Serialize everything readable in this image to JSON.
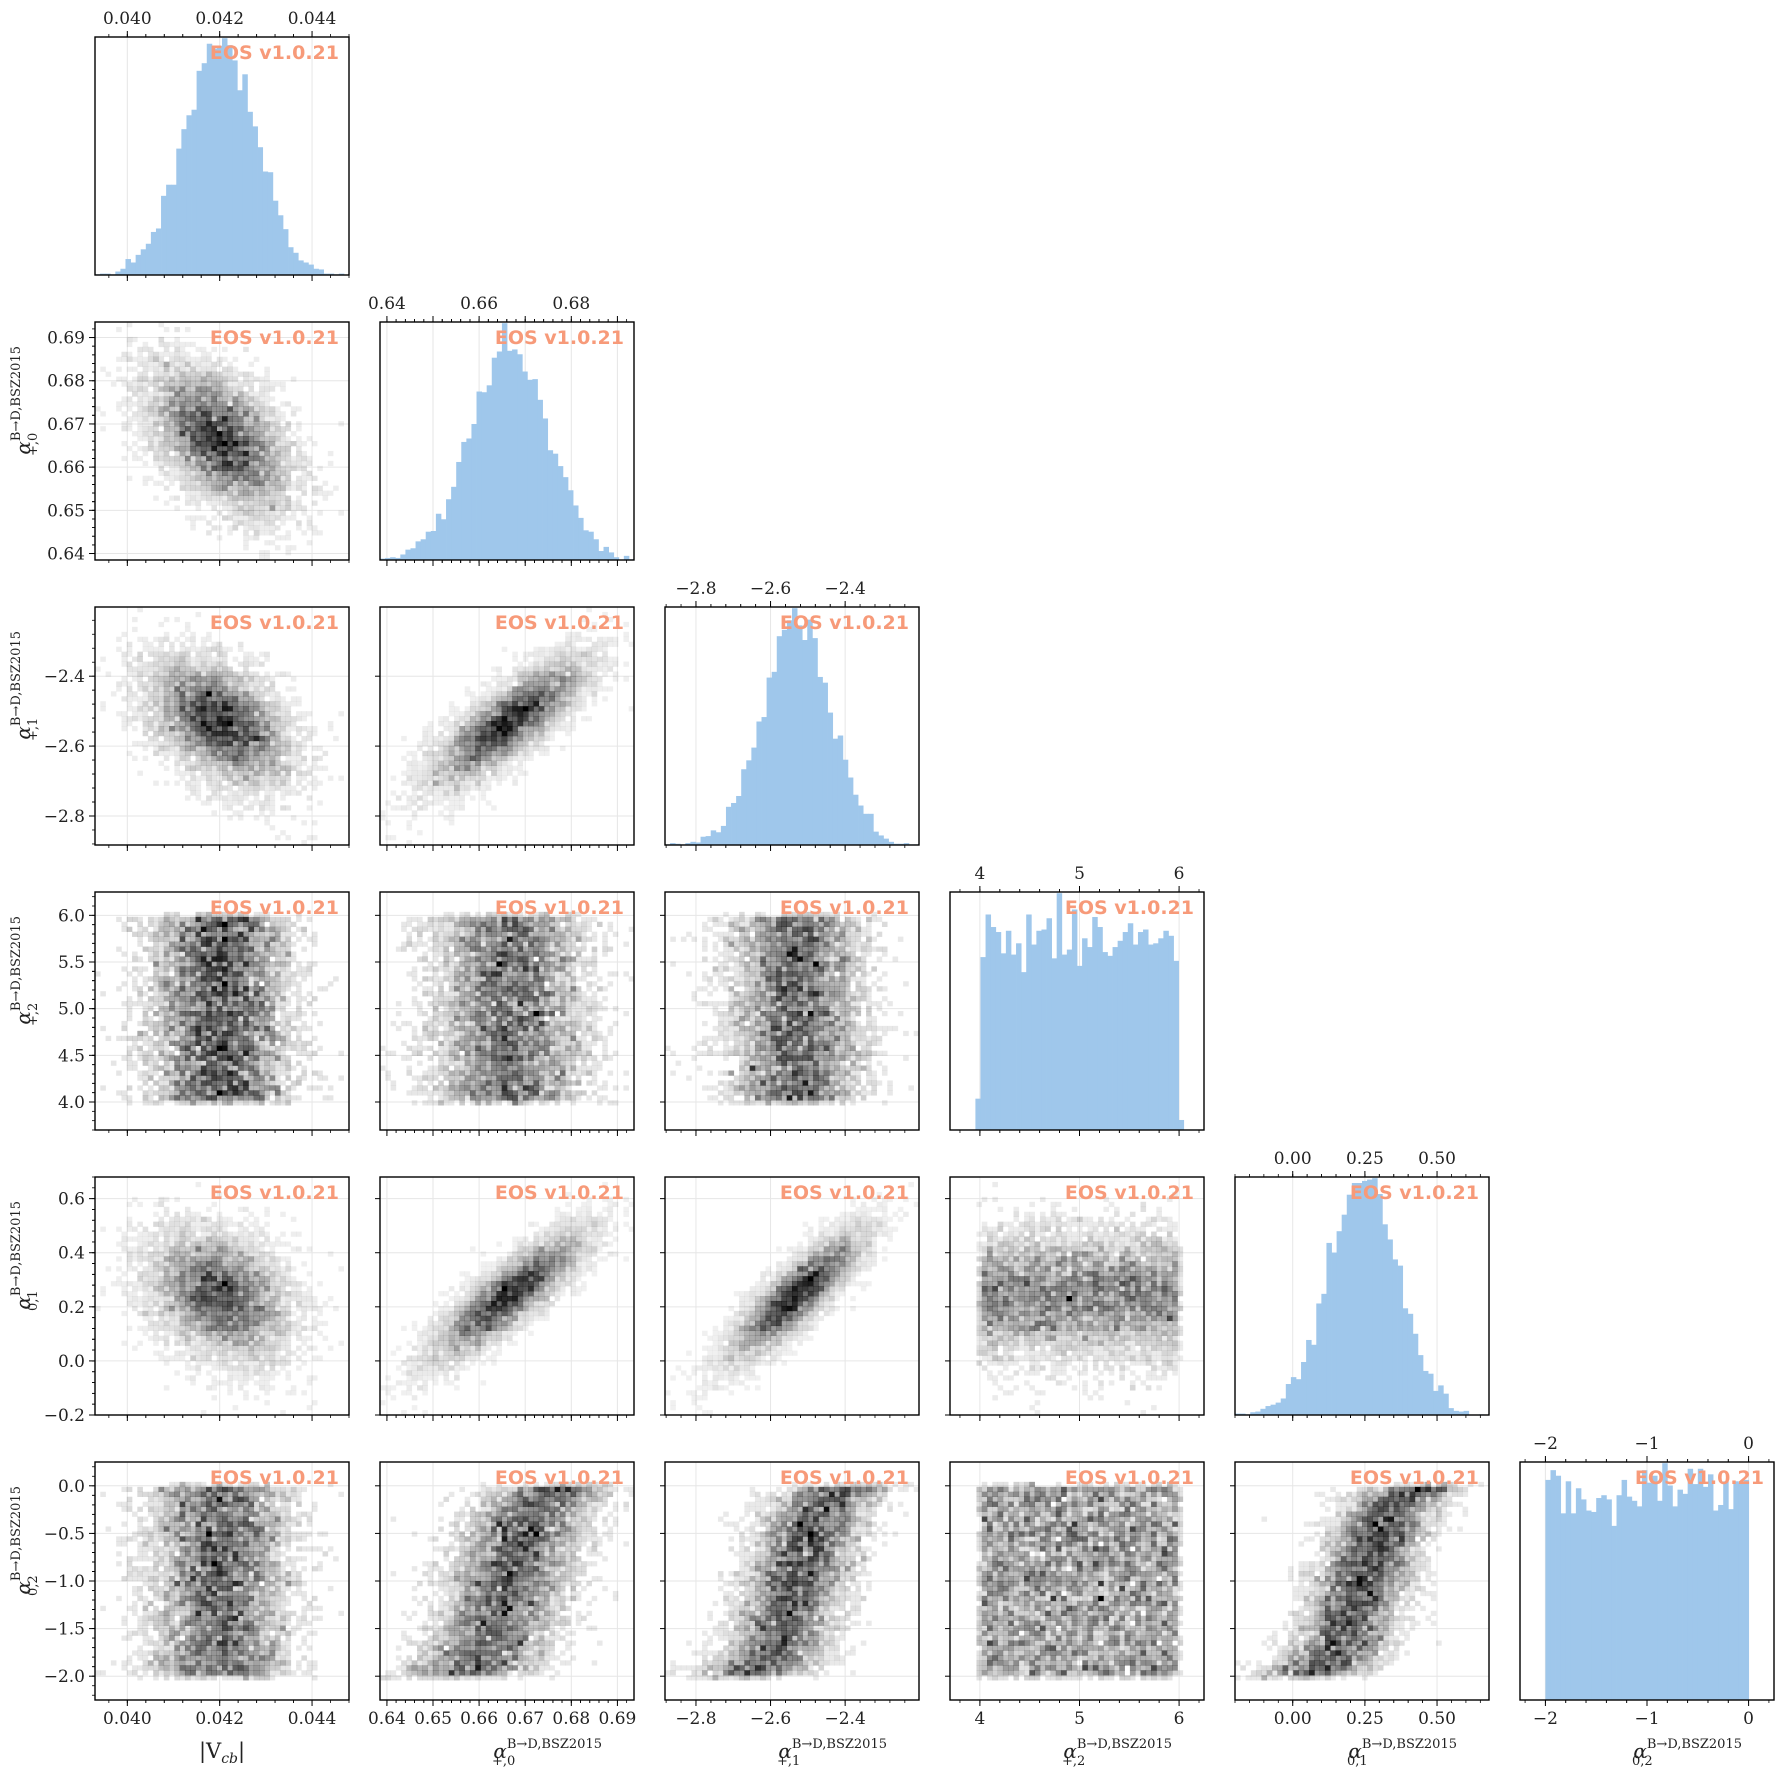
{
  "chart_data": {
    "type": "corner",
    "watermark": "EOS v1.0.21",
    "parameters": [
      {
        "label": "|V_cb|",
        "label_base": "|V",
        "label_sub": "cb",
        "label_tail": "|",
        "range": [
          0.0393,
          0.0448
        ],
        "mean": 0.042,
        "sd": 0.00078,
        "ticks": [
          0.04,
          0.042,
          0.044
        ],
        "tick_labels": [
          "0.040",
          "0.042",
          "0.044"
        ],
        "prior": "gaussian"
      },
      {
        "label": "α_{+,0}^{B→D,BSZ2015}",
        "label_base": "α",
        "label_sup": "B→D,BSZ2015",
        "label_sub": "+,0",
        "range": [
          0.6385,
          0.6936
        ],
        "mean": 0.6665,
        "sd": 0.0085,
        "ticks": [
          0.64,
          0.65,
          0.66,
          0.67,
          0.68,
          0.69
        ],
        "tick_labels": [
          "0.64",
          "0.65",
          "0.66",
          "0.67",
          "0.68",
          "0.69"
        ],
        "top_ticks": [
          0.64,
          0.66,
          0.68
        ],
        "prior": "gaussian"
      },
      {
        "label": "α_{+,1}^{B→D,BSZ2015}",
        "label_base": "α",
        "label_sup": "B→D,BSZ2015",
        "label_sub": "+,1",
        "range": [
          -2.883,
          -2.202
        ],
        "mean": -2.53,
        "sd": 0.09,
        "ticks": [
          -2.8,
          -2.6,
          -2.4
        ],
        "tick_labels": [
          "−2.8",
          "−2.6",
          "−2.4"
        ],
        "prior": "gaussian"
      },
      {
        "label": "α_{+,2}^{B→D,BSZ2015}",
        "label_base": "α",
        "label_sup": "B→D,BSZ2015",
        "label_sub": "+,2",
        "range": [
          3.7,
          6.25
        ],
        "low": 4.0,
        "high": 6.0,
        "ticks": [
          4,
          5,
          6
        ],
        "left_ticks": [
          4.0,
          4.5,
          5.0,
          5.5,
          6.0
        ],
        "left_tick_labels": [
          "4.0",
          "4.5",
          "5.0",
          "5.5",
          "6.0"
        ],
        "tick_labels": [
          "4",
          "5",
          "6"
        ],
        "prior": "uniform"
      },
      {
        "label": "α_{0,1}^{B→D,BSZ2015}",
        "label_base": "α",
        "label_sup": "B→D,BSZ2015",
        "label_sub": "0,1",
        "range": [
          -0.2,
          0.68
        ],
        "mean": 0.245,
        "sd": 0.12,
        "ticks": [
          0.0,
          0.25,
          0.5
        ],
        "tick_labels": [
          "0.00",
          "0.25",
          "0.50"
        ],
        "left_ticks": [
          -0.2,
          0.0,
          0.2,
          0.4,
          0.6
        ],
        "left_tick_labels": [
          "−0.2",
          "0.0",
          "0.2",
          "0.4",
          "0.6"
        ],
        "prior": "gaussian"
      },
      {
        "label": "α_{0,2}^{B→D,BSZ2015}",
        "label_base": "α",
        "label_sup": "B→D,BSZ2015",
        "label_sub": "0,2",
        "range": [
          -2.25,
          0.25
        ],
        "low": -2.0,
        "high": 0.0,
        "ticks": [
          -2,
          -1,
          0
        ],
        "tick_labels": [
          "−2",
          "−1",
          "0"
        ],
        "left_ticks": [
          -2.0,
          -1.5,
          -1.0,
          -0.5,
          0.0
        ],
        "left_tick_labels": [
          "−2.0",
          "−1.5",
          "−1.0",
          "−0.5",
          "0.0"
        ],
        "prior": "uniform"
      }
    ],
    "correlations": [
      [
        1,
        -0.5,
        -0.45,
        0,
        -0.3,
        0
      ],
      [
        -0.5,
        1,
        0.8,
        0,
        0.85,
        0.55
      ],
      [
        -0.45,
        0.8,
        1,
        0,
        0.85,
        0.6
      ],
      [
        0,
        0,
        0,
        1,
        0,
        0
      ],
      [
        -0.3,
        0.85,
        0.85,
        0,
        1,
        0.7
      ],
      [
        0,
        0.55,
        0.6,
        0,
        0.7,
        1
      ]
    ],
    "hist_color": "#9fc7eb",
    "density_color": "#000000",
    "grid": true
  }
}
